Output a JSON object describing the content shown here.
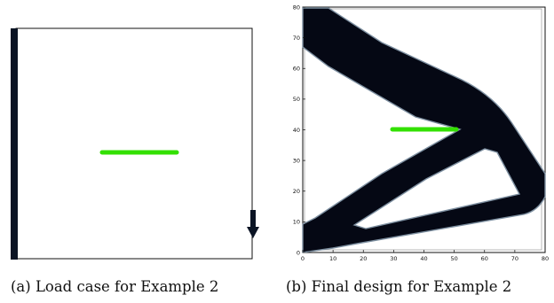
{
  "captions": {
    "left": "(a)  Load case for Example 2",
    "right": "(b)  Final design for Example 2"
  },
  "load_case": {
    "support": "fixed-left-edge",
    "load_direction": "down",
    "load_icon": "arrow-down-icon"
  },
  "final_design": {
    "x_ticks": [
      "0",
      "10",
      "20",
      "30",
      "40",
      "50",
      "60",
      "70",
      "80"
    ],
    "y_ticks": [
      "0",
      "10",
      "20",
      "30",
      "40",
      "50",
      "60",
      "70",
      "80"
    ],
    "xlim": [
      0,
      80
    ],
    "ylim": [
      0,
      80
    ],
    "green_segment": {
      "x0": 30,
      "x1": 51,
      "y": 40
    }
  },
  "colors": {
    "material": "#050814",
    "green_bar": "#33e000",
    "support": "#0b1424",
    "frame": "#111111"
  }
}
